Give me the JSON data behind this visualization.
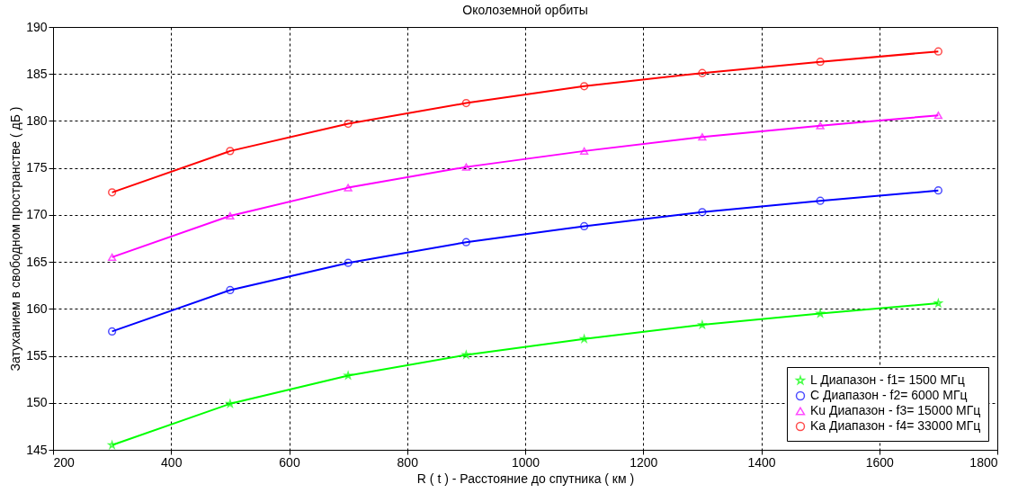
{
  "chart_data": {
    "type": "line",
    "title": "Околоземной орбиты",
    "xlabel": "R ( t ) - Расстояние до спутника ( км )",
    "ylabel": "Затуханием в свободном пространстве ( дБ )",
    "x": [
      300,
      500,
      700,
      900,
      1100,
      1300,
      1500,
      1700
    ],
    "xlim": [
      200,
      1800
    ],
    "xticks": [
      200,
      400,
      600,
      800,
      1000,
      1200,
      1400,
      1600,
      1800
    ],
    "ylim": [
      145,
      190
    ],
    "yticks": [
      145,
      150,
      155,
      160,
      165,
      170,
      175,
      180,
      185,
      190
    ],
    "grid": true,
    "legend": "bottom right",
    "line_style": "solid",
    "series": [
      {
        "name": "L Диапазон - f1= 1500 МГц",
        "color": "#00ff00",
        "marker": "star",
        "values": [
          145.5,
          149.9,
          152.9,
          155.1,
          156.8,
          158.3,
          159.5,
          160.6
        ]
      },
      {
        "name": "C Диапазон - f2= 6000 МГц",
        "color": "#0000ff",
        "marker": "circle",
        "values": [
          157.6,
          162.0,
          164.9,
          167.1,
          168.8,
          170.3,
          171.5,
          172.6
        ]
      },
      {
        "name": "Ku Диапазон - f3= 15000 МГц",
        "color": "#ff00ff",
        "marker": "triangle",
        "values": [
          165.5,
          169.9,
          172.9,
          175.1,
          176.8,
          178.3,
          179.5,
          180.6
        ]
      },
      {
        "name": "Ka Диапазон - f4= 33000 МГц",
        "color": "#ff0000",
        "marker": "circle",
        "values": [
          172.4,
          176.8,
          179.7,
          181.9,
          183.7,
          185.1,
          186.3,
          187.4
        ]
      }
    ]
  }
}
